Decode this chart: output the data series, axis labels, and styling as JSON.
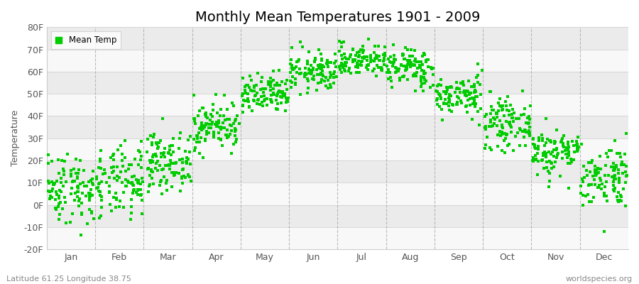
{
  "title": "Monthly Mean Temperatures 1901 - 2009",
  "ylabel": "Temperature",
  "xlabel_labels": [
    "Jan",
    "Feb",
    "Mar",
    "Apr",
    "May",
    "Jun",
    "Jul",
    "Aug",
    "Sep",
    "Oct",
    "Nov",
    "Dec"
  ],
  "ylim": [
    -20,
    80
  ],
  "yticks": [
    -20,
    -10,
    0,
    10,
    20,
    30,
    40,
    50,
    60,
    70,
    80
  ],
  "ytick_labels": [
    "-20F",
    "-10F",
    "0F",
    "10F",
    "20F",
    "30F",
    "40F",
    "50F",
    "60F",
    "70F",
    "80F"
  ],
  "dot_color": "#00CC00",
  "background_color": "#ffffff",
  "band_color_light": "#ebebeb",
  "band_color_white": "#f8f8f8",
  "legend_label": "Mean Temp",
  "footer_left": "Latitude 61.25 Longitude 38.75",
  "footer_right": "worldspecies.org",
  "title_fontsize": 14,
  "axis_label_fontsize": 9,
  "tick_fontsize": 9,
  "n_years": 109,
  "monthly_mean_celsius": [
    -13.5,
    -12.5,
    -7.0,
    2.0,
    9.5,
    15.5,
    18.5,
    16.5,
    9.5,
    2.5,
    -4.5,
    -10.5
  ],
  "monthly_std_celsius": [
    4.5,
    4.5,
    3.5,
    3.0,
    2.5,
    2.5,
    2.0,
    2.5,
    2.5,
    3.0,
    3.0,
    4.0
  ]
}
